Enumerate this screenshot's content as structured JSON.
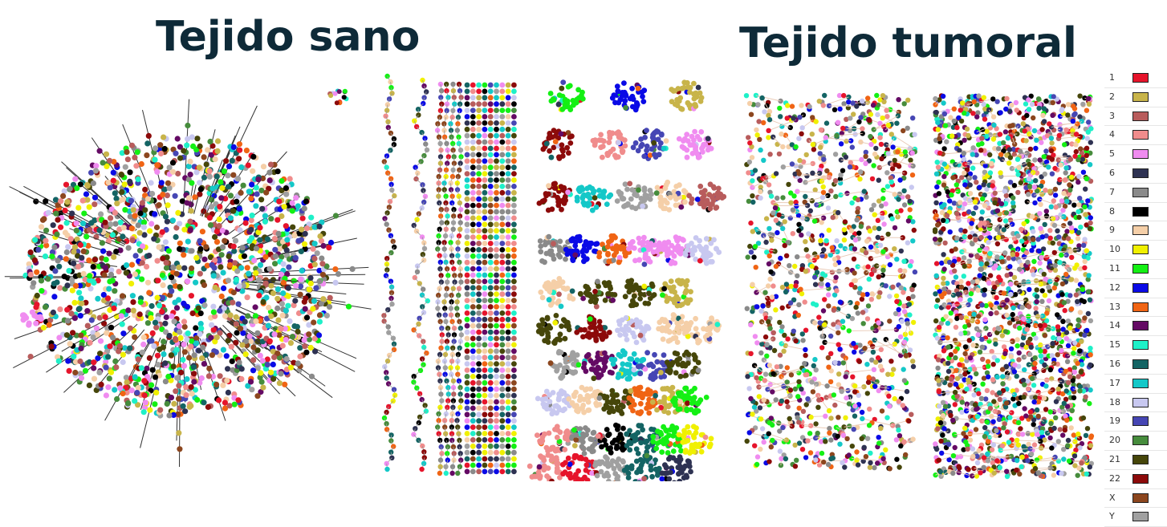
{
  "titles": {
    "healthy": "Tejido sano",
    "tumor": "Tejido tumoral"
  },
  "legend": [
    {
      "label": "1",
      "color": "#e6142b"
    },
    {
      "label": "2",
      "color": "#c8b44a"
    },
    {
      "label": "3",
      "color": "#b85c5c"
    },
    {
      "label": "4",
      "color": "#f08c8c"
    },
    {
      "label": "5",
      "color": "#f08cf0"
    },
    {
      "label": "6",
      "color": "#2e3252"
    },
    {
      "label": "7",
      "color": "#8a8a8a"
    },
    {
      "label": "8",
      "color": "#000000"
    },
    {
      "label": "9",
      "color": "#f5cfa8"
    },
    {
      "label": "10",
      "color": "#f0f000"
    },
    {
      "label": "11",
      "color": "#14f014"
    },
    {
      "label": "12",
      "color": "#0a0ae6"
    },
    {
      "label": "13",
      "color": "#f06414"
    },
    {
      "label": "14",
      "color": "#640a64"
    },
    {
      "label": "15",
      "color": "#1ef0c8"
    },
    {
      "label": "16",
      "color": "#146464"
    },
    {
      "label": "17",
      "color": "#14c8c8"
    },
    {
      "label": "18",
      "color": "#c8c8f0"
    },
    {
      "label": "19",
      "color": "#4646b4"
    },
    {
      "label": "20",
      "color": "#468c3c"
    },
    {
      "label": "21",
      "color": "#46460a"
    },
    {
      "label": "22",
      "color": "#8c0a0a"
    },
    {
      "label": "X",
      "color": "#8c461e"
    },
    {
      "label": "Y",
      "color": "#a0a0a0"
    }
  ]
}
